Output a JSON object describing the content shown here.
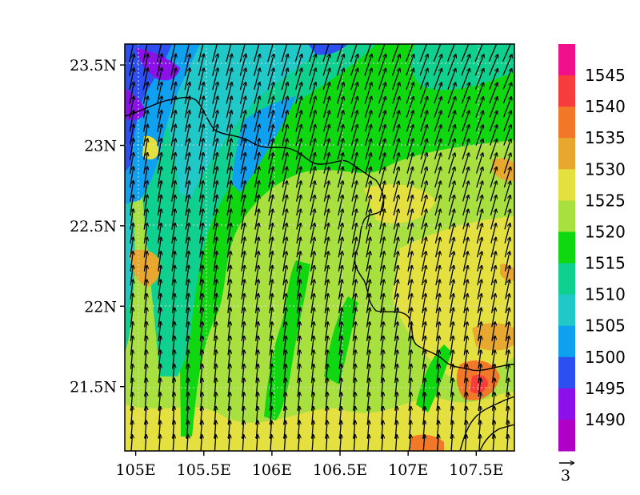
{
  "map": {
    "lon_range": [
      104.92,
      107.78
    ],
    "lat_range": [
      21.1,
      23.63
    ],
    "x_ticks": [
      {
        "value": 105.0,
        "label": "105E"
      },
      {
        "value": 105.5,
        "label": "105.5E"
      },
      {
        "value": 106.0,
        "label": "106E"
      },
      {
        "value": 106.5,
        "label": "106.5E"
      },
      {
        "value": 107.0,
        "label": "107E"
      },
      {
        "value": 107.5,
        "label": "107.5E"
      }
    ],
    "y_ticks": [
      {
        "value": 23.5,
        "label": "23.5N"
      },
      {
        "value": 23.0,
        "label": "23N"
      },
      {
        "value": 22.5,
        "label": "22.5N"
      },
      {
        "value": 22.0,
        "label": "22N"
      },
      {
        "value": 21.5,
        "label": "21.5N"
      }
    ],
    "gridlines": "dotted",
    "field": "filled contours with wind vectors",
    "wind_direction": "predominantly from south to south-southwest",
    "vector_reference_label": "3"
  },
  "colorbar": {
    "labels": [
      "1545",
      "1540",
      "1535",
      "1530",
      "1525",
      "1520",
      "1515",
      "1510",
      "1505",
      "1500",
      "1495",
      "1490"
    ],
    "colors": [
      "#f0108c",
      "#f83c3c",
      "#f07828",
      "#e8a830",
      "#e4e040",
      "#a8e040",
      "#10d810",
      "#10d090",
      "#20c8c8",
      "#10a0f0",
      "#2c50f0",
      "#8c10e8",
      "#b000c8"
    ]
  }
}
